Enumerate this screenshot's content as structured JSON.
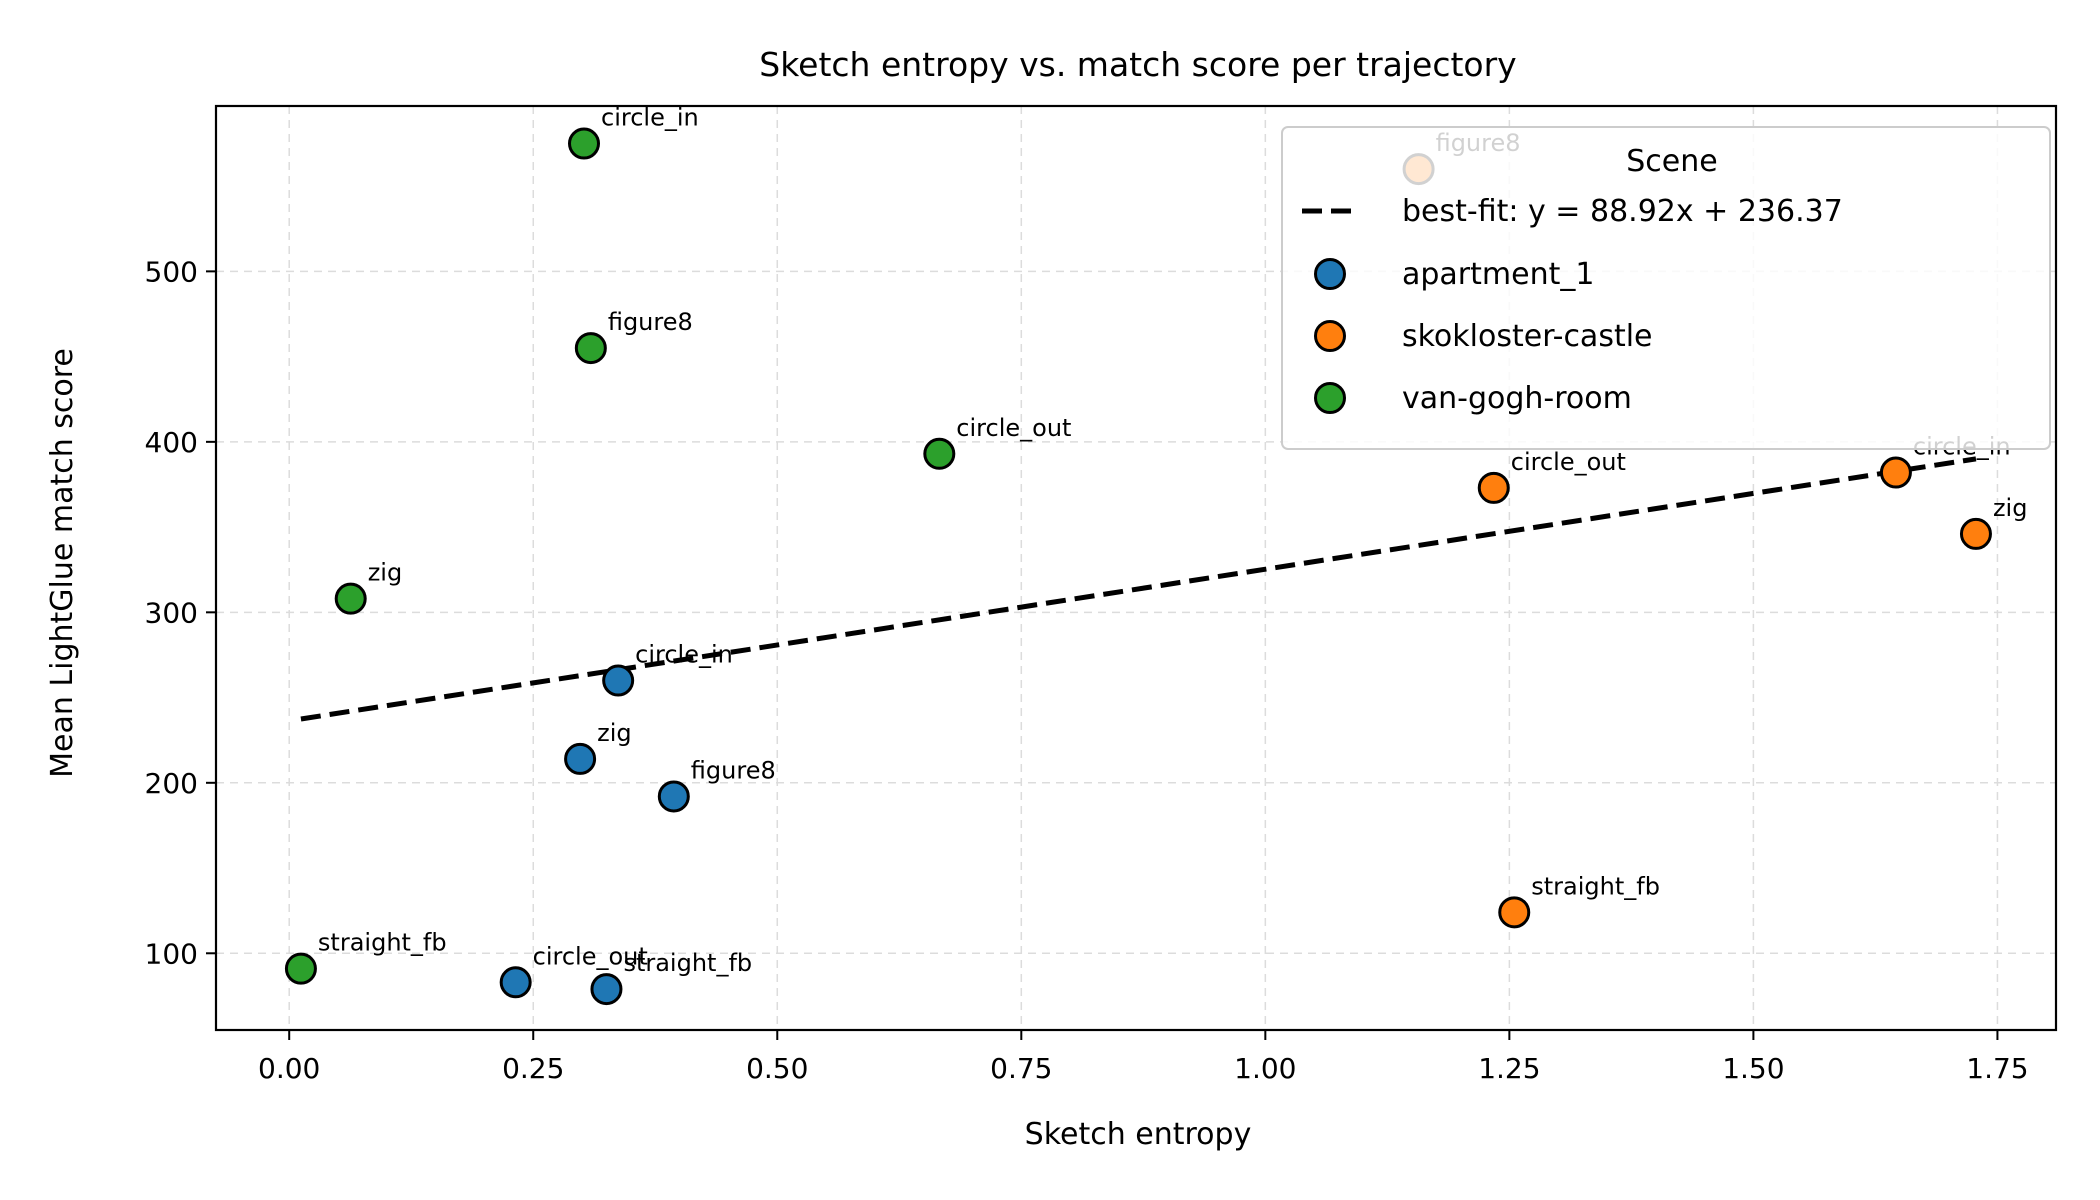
{
  "chart_data": {
    "type": "scatter",
    "title": "Sketch entropy vs. match score per trajectory",
    "xlabel": "Sketch entropy",
    "ylabel": "Mean LightGlue match score",
    "xlim": [
      -0.075,
      1.81
    ],
    "ylim": [
      55,
      597
    ],
    "xticks": [
      0.0,
      0.25,
      0.5,
      0.75,
      1.0,
      1.25,
      1.5,
      1.75
    ],
    "xtick_labels": [
      "0.00",
      "0.25",
      "0.50",
      "0.75",
      "1.00",
      "1.25",
      "1.50",
      "1.75"
    ],
    "yticks": [
      100,
      200,
      300,
      400,
      500
    ],
    "ytick_labels": [
      "100",
      "200",
      "300",
      "400",
      "500"
    ],
    "grid": true,
    "legend": {
      "title": "Scene",
      "placement": "top-right"
    },
    "fit": {
      "label": "best-fit: y = 88.92x + 236.37",
      "slope": 88.92,
      "intercept": 236.37,
      "x_range": [
        0.012,
        1.728
      ],
      "color": "#000000"
    },
    "series": [
      {
        "name": "apartment_1",
        "color": "#1f77b4",
        "points": [
          {
            "x": 0.337,
            "y": 260,
            "label": "circle_in"
          },
          {
            "x": 0.298,
            "y": 214,
            "label": "zig"
          },
          {
            "x": 0.394,
            "y": 192,
            "label": "figure8"
          },
          {
            "x": 0.232,
            "y": 83,
            "label": "circle_out"
          },
          {
            "x": 0.325,
            "y": 79,
            "label": "straight_fb"
          }
        ]
      },
      {
        "name": "skokloster-castle",
        "color": "#ff7f0e",
        "points": [
          {
            "x": 1.157,
            "y": 560,
            "label": "figure8"
          },
          {
            "x": 1.234,
            "y": 373,
            "label": "circle_out"
          },
          {
            "x": 1.646,
            "y": 382,
            "label": "circle_in"
          },
          {
            "x": 1.728,
            "y": 346,
            "label": "zig"
          },
          {
            "x": 1.255,
            "y": 124,
            "label": "straight_fb"
          }
        ]
      },
      {
        "name": "van-gogh-room",
        "color": "#2ca02c",
        "points": [
          {
            "x": 0.302,
            "y": 575,
            "label": "circle_in"
          },
          {
            "x": 0.309,
            "y": 455,
            "label": "figure8"
          },
          {
            "x": 0.666,
            "y": 393,
            "label": "circle_out"
          },
          {
            "x": 0.063,
            "y": 308,
            "label": "zig"
          },
          {
            "x": 0.012,
            "y": 91,
            "label": "straight_fb"
          }
        ]
      }
    ]
  }
}
